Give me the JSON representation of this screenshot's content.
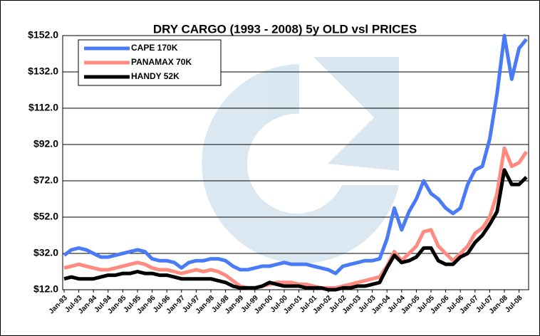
{
  "chart_data": {
    "type": "line",
    "title": "DRY CARGO (1993 - 2008) 5y OLD vsl PRICES",
    "categories": [
      "Jan-93",
      null,
      "Jul-93",
      null,
      "Jan-94",
      null,
      "Jul-94",
      null,
      "Jan-95",
      null,
      "Jul-95",
      null,
      "Jan-96",
      null,
      "Jul-96",
      null,
      "Jan-97",
      null,
      "Jul-97",
      null,
      "Jan-98",
      null,
      "Jul-98",
      null,
      "Jan-99",
      null,
      "Jul-99",
      null,
      "Jan-00",
      null,
      "Jul-00",
      null,
      "Jan-01",
      null,
      "Jul-01",
      null,
      "Jan-02",
      null,
      "Jul-02",
      null,
      "Jan-03",
      null,
      "Jul-03",
      null,
      "Jan-04",
      null,
      "Jul-04",
      null,
      "Jan-05",
      null,
      "Jul-05",
      null,
      "Jan-06",
      null,
      "Jul-06",
      null,
      "Jan-07",
      null,
      "Jul-07",
      null,
      "Jan-08",
      null,
      "Jul-08",
      null
    ],
    "series": [
      {
        "name": "CAPE 170K",
        "color": "#4a7bf7",
        "values": [
          31,
          34,
          35,
          34,
          32,
          30,
          30,
          31,
          32,
          33,
          34,
          33,
          29,
          28,
          28,
          27,
          24,
          27,
          28,
          28,
          29,
          29,
          28,
          25,
          23,
          23,
          24,
          25,
          25,
          26,
          27,
          26,
          26,
          26,
          25,
          24,
          23,
          21,
          25,
          26,
          27,
          28,
          28,
          29,
          40,
          57,
          45,
          55,
          62,
          72,
          65,
          62,
          57,
          54,
          57,
          70,
          78,
          80,
          95,
          120,
          152,
          128,
          145,
          150
        ]
      },
      {
        "name": "PANAMAX 70K",
        "color": "#ff8a80",
        "values": [
          24,
          25,
          26,
          25,
          24,
          23,
          23,
          24,
          25,
          26,
          27,
          26,
          24,
          23,
          23,
          22,
          21,
          22,
          23,
          22,
          23,
          22,
          20,
          17,
          14,
          13,
          13,
          14,
          15,
          16,
          16,
          16,
          15,
          15,
          14,
          13,
          13,
          13,
          14,
          15,
          16,
          17,
          18,
          19,
          25,
          33,
          28,
          32,
          36,
          44,
          45,
          36,
          32,
          28,
          32,
          36,
          43,
          46,
          52,
          65,
          90,
          80,
          82,
          88
        ]
      },
      {
        "name": "HANDY 52K",
        "color": "#000000",
        "values": [
          18,
          19,
          18,
          18,
          18,
          19,
          20,
          20,
          21,
          21,
          22,
          21,
          21,
          20,
          20,
          19,
          18,
          18,
          18,
          18,
          18,
          17,
          16,
          14,
          13,
          13,
          13,
          14,
          16,
          15,
          14,
          14,
          14,
          13,
          13,
          13,
          12,
          12,
          13,
          13,
          14,
          14,
          15,
          16,
          24,
          31,
          27,
          28,
          30,
          35,
          35,
          28,
          26,
          26,
          30,
          32,
          38,
          42,
          48,
          55,
          78,
          70,
          70,
          74
        ]
      }
    ],
    "ylim": [
      12,
      152
    ],
    "yticks": [
      {
        "value": 12,
        "label": "$12.0"
      },
      {
        "value": 32,
        "label": "$32.0"
      },
      {
        "value": 52,
        "label": "$52.0"
      },
      {
        "value": 72,
        "label": "$72.0"
      },
      {
        "value": 92,
        "label": "$92.0"
      },
      {
        "value": 112,
        "label": "$112.0"
      },
      {
        "value": 132,
        "label": "$132.0"
      },
      {
        "value": 152,
        "label": "$152.0"
      }
    ],
    "grid": true,
    "legend": "upper left"
  }
}
